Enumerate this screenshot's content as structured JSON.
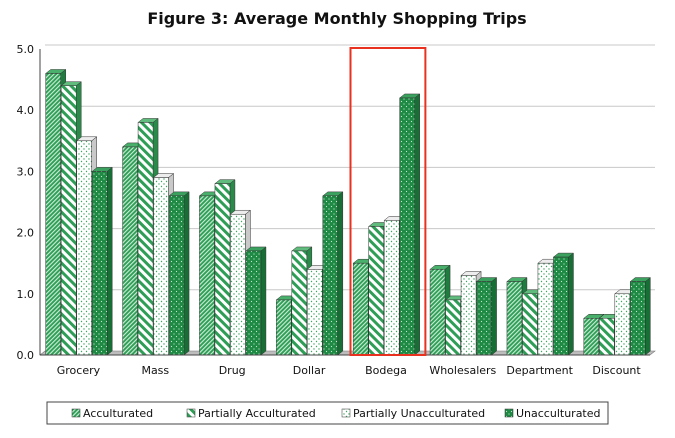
{
  "chart_data": {
    "type": "bar",
    "title": "Figure 3: Average Monthly Shopping Trips",
    "xlabel": "",
    "ylabel": "",
    "ylim": [
      0,
      5
    ],
    "y_ticks": [
      "0.0",
      "1.0",
      "2.0",
      "3.0",
      "4.0",
      "5.0"
    ],
    "grid": true,
    "legend_position": "bottom",
    "highlighted_category": "Bodega",
    "categories": [
      "Grocery",
      "Mass",
      "Drug",
      "Dollar",
      "Bodega",
      "Wholesalers",
      "Department",
      "Discount"
    ],
    "series": [
      {
        "name": "Acculturated",
        "pattern": "diagonal-hatch",
        "values": [
          4.6,
          3.4,
          2.6,
          0.9,
          1.5,
          1.4,
          1.2,
          0.6
        ]
      },
      {
        "name": "Partially Acculturated",
        "pattern": "diagonal-stripe",
        "values": [
          4.4,
          3.8,
          2.8,
          1.7,
          2.1,
          0.9,
          1.0,
          0.6
        ]
      },
      {
        "name": "Partially Unacculturated",
        "pattern": "dots-on-white",
        "values": [
          3.5,
          2.9,
          2.3,
          1.4,
          2.2,
          1.3,
          1.5,
          1.0
        ]
      },
      {
        "name": "Unacculturated",
        "pattern": "dots-on-green",
        "values": [
          3.0,
          2.6,
          1.7,
          2.6,
          4.2,
          1.2,
          1.6,
          1.2
        ]
      }
    ]
  },
  "colors": {
    "green_dark": "#1e8a44",
    "green_face": "#2e9e57",
    "green_light": "#b6e0c2",
    "highlight_box": "#e8321f",
    "gridline": "#c8c8c8",
    "axis": "#444444"
  }
}
